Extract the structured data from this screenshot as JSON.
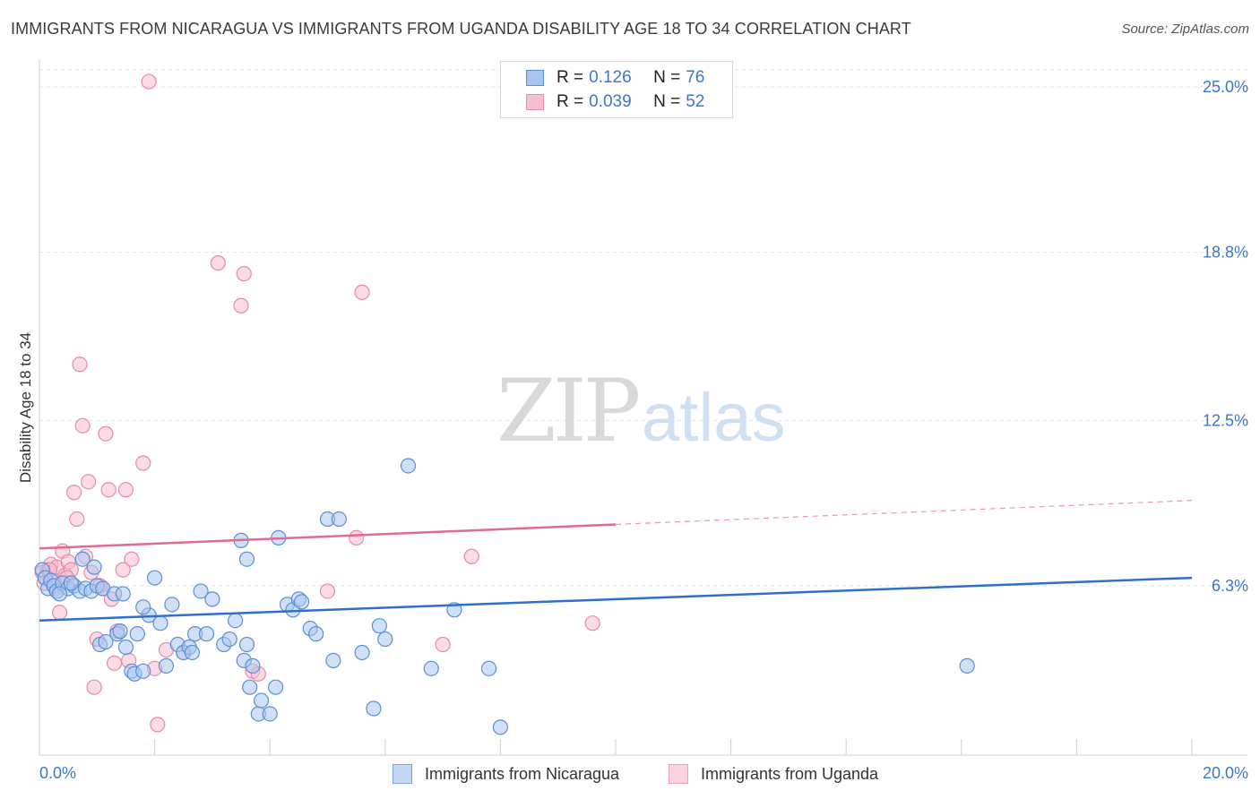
{
  "header": {
    "title": "IMMIGRANTS FROM NICARAGUA VS IMMIGRANTS FROM UGANDA DISABILITY AGE 18 TO 34 CORRELATION CHART",
    "source": "Source: ZipAtlas.com"
  },
  "watermark": {
    "zip": "ZIP",
    "atlas": "atlas"
  },
  "legend": {
    "rows": [
      {
        "r_label": "R = ",
        "r_value": "0.126",
        "n_label": "N = ",
        "n_value": "76"
      },
      {
        "r_label": "R = ",
        "r_value": "0.039",
        "n_label": "N = ",
        "n_value": "52"
      }
    ]
  },
  "bottom_legend": {
    "items": [
      {
        "label": "Immigrants from Nicaragua"
      },
      {
        "label": "Immigrants from Uganda"
      }
    ]
  },
  "chart_data": {
    "type": "scatter",
    "title": "IMMIGRANTS FROM NICARAGUA VS IMMIGRANTS FROM UGANDA DISABILITY AGE 18 TO 34 CORRELATION CHART",
    "xlabel": "",
    "ylabel": "Disability Age 18 to 34",
    "xlim": [
      0,
      20
    ],
    "ylim": [
      0,
      25.6
    ],
    "x_tick_labels": [
      "0.0%",
      "20.0%"
    ],
    "y_ticks": [
      6.3,
      12.5,
      18.8,
      25.0
    ],
    "y_tick_labels": [
      "6.3%",
      "12.5%",
      "18.8%",
      "25.0%"
    ],
    "grid": true,
    "legend_position": "top-center",
    "colors": {
      "nicaragua_fill": "#a9c6f0",
      "nicaragua_stroke": "#5a8fd6",
      "nicaragua_line": "#2f6fce",
      "uganda_fill": "#f7bed0",
      "uganda_stroke": "#e88aa8",
      "uganda_line": "#e06a92",
      "tick_text": "#3a78c9",
      "grid": "#e3e3e3"
    },
    "series": [
      {
        "name": "Immigrants from Nicaragua",
        "r": 0.126,
        "n": 76,
        "trend": {
          "x0": 0,
          "y0": 5.0,
          "x1": 20,
          "y1": 6.6
        },
        "points": [
          [
            0.05,
            6.9
          ],
          [
            0.1,
            6.6
          ],
          [
            0.15,
            6.2
          ],
          [
            0.2,
            6.5
          ],
          [
            0.25,
            6.3
          ],
          [
            0.3,
            6.1
          ],
          [
            0.4,
            6.4
          ],
          [
            0.5,
            6.2
          ],
          [
            0.6,
            6.3
          ],
          [
            0.7,
            6.1
          ],
          [
            0.75,
            7.3
          ],
          [
            0.8,
            6.2
          ],
          [
            0.9,
            6.1
          ],
          [
            0.95,
            7.0
          ],
          [
            1.0,
            6.3
          ],
          [
            1.05,
            4.1
          ],
          [
            1.1,
            6.2
          ],
          [
            1.15,
            4.2
          ],
          [
            1.3,
            6.0
          ],
          [
            1.35,
            4.5
          ],
          [
            1.4,
            4.6
          ],
          [
            1.5,
            4.0
          ],
          [
            1.6,
            3.1
          ],
          [
            1.65,
            3.0
          ],
          [
            1.7,
            4.5
          ],
          [
            1.8,
            3.1
          ],
          [
            1.9,
            5.2
          ],
          [
            2.0,
            6.6
          ],
          [
            2.1,
            4.9
          ],
          [
            2.2,
            3.3
          ],
          [
            2.3,
            5.6
          ],
          [
            2.4,
            4.1
          ],
          [
            2.5,
            3.8
          ],
          [
            2.6,
            4.0
          ],
          [
            2.65,
            3.8
          ],
          [
            2.7,
            4.5
          ],
          [
            2.8,
            6.1
          ],
          [
            2.9,
            4.5
          ],
          [
            3.0,
            5.8
          ],
          [
            3.2,
            4.1
          ],
          [
            3.3,
            4.3
          ],
          [
            3.4,
            5.0
          ],
          [
            3.55,
            3.5
          ],
          [
            3.6,
            4.1
          ],
          [
            3.7,
            3.3
          ],
          [
            3.5,
            8.0
          ],
          [
            3.65,
            2.5
          ],
          [
            3.8,
            1.5
          ],
          [
            3.85,
            2.0
          ],
          [
            3.6,
            7.3
          ],
          [
            4.0,
            1.5
          ],
          [
            4.1,
            2.5
          ],
          [
            4.15,
            8.1
          ],
          [
            4.3,
            5.6
          ],
          [
            4.4,
            5.4
          ],
          [
            4.5,
            5.8
          ],
          [
            4.55,
            5.7
          ],
          [
            4.7,
            4.7
          ],
          [
            4.8,
            4.5
          ],
          [
            5.1,
            3.5
          ],
          [
            5.0,
            8.8
          ],
          [
            5.2,
            8.8
          ],
          [
            5.6,
            3.8
          ],
          [
            5.8,
            1.7
          ],
          [
            5.9,
            4.8
          ],
          [
            6.0,
            4.3
          ],
          [
            6.4,
            10.8
          ],
          [
            6.8,
            3.2
          ],
          [
            7.2,
            5.4
          ],
          [
            7.8,
            3.2
          ],
          [
            8.0,
            1.0
          ],
          [
            16.1,
            3.3
          ],
          [
            1.8,
            5.5
          ],
          [
            1.45,
            6.0
          ],
          [
            0.35,
            6.0
          ],
          [
            0.55,
            6.4
          ]
        ]
      },
      {
        "name": "Immigrants from Uganda",
        "r": 0.039,
        "n": 52,
        "trend": {
          "x0": 0,
          "y0": 7.7,
          "x1": 10,
          "y1": 8.6,
          "dash_to_x": 20,
          "dash_to_y": 9.5
        },
        "points": [
          [
            0.05,
            6.8
          ],
          [
            0.1,
            6.6
          ],
          [
            0.15,
            6.9
          ],
          [
            0.2,
            7.1
          ],
          [
            0.25,
            6.5
          ],
          [
            0.3,
            7.0
          ],
          [
            0.35,
            5.3
          ],
          [
            0.4,
            7.6
          ],
          [
            0.45,
            6.7
          ],
          [
            0.5,
            7.2
          ],
          [
            0.55,
            6.9
          ],
          [
            0.6,
            9.8
          ],
          [
            0.65,
            8.8
          ],
          [
            0.7,
            14.6
          ],
          [
            0.75,
            12.3
          ],
          [
            0.8,
            7.4
          ],
          [
            0.85,
            10.2
          ],
          [
            0.9,
            6.8
          ],
          [
            0.95,
            2.5
          ],
          [
            1.0,
            4.3
          ],
          [
            1.1,
            6.2
          ],
          [
            1.15,
            12.0
          ],
          [
            1.2,
            9.9
          ],
          [
            1.25,
            5.8
          ],
          [
            1.3,
            3.4
          ],
          [
            1.35,
            4.6
          ],
          [
            1.45,
            6.9
          ],
          [
            1.5,
            9.9
          ],
          [
            1.55,
            3.5
          ],
          [
            1.6,
            7.3
          ],
          [
            1.8,
            10.9
          ],
          [
            1.9,
            25.2
          ],
          [
            2.0,
            3.2
          ],
          [
            2.05,
            1.1
          ],
          [
            2.2,
            3.9
          ],
          [
            2.5,
            3.8
          ],
          [
            3.1,
            18.4
          ],
          [
            3.5,
            16.8
          ],
          [
            3.55,
            18.0
          ],
          [
            3.7,
            3.1
          ],
          [
            3.8,
            3.0
          ],
          [
            5.0,
            6.1
          ],
          [
            5.5,
            8.1
          ],
          [
            5.6,
            17.3
          ],
          [
            7.0,
            4.1
          ],
          [
            7.5,
            7.4
          ],
          [
            9.6,
            4.9
          ],
          [
            0.08,
            6.4
          ],
          [
            0.18,
            6.9
          ],
          [
            0.28,
            6.2
          ],
          [
            0.48,
            6.6
          ],
          [
            1.05,
            6.3
          ]
        ]
      }
    ]
  }
}
